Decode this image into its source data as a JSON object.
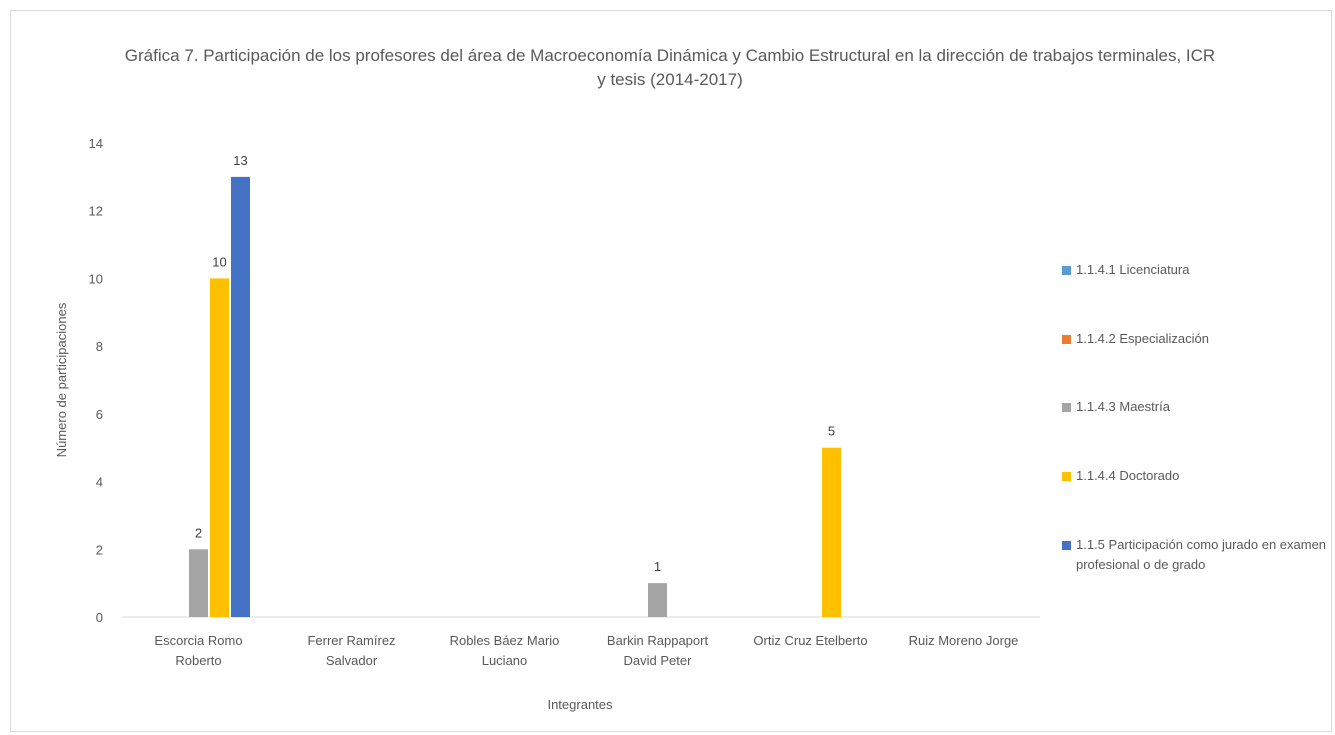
{
  "chart_data": {
    "type": "bar",
    "title": "Gráfica 7. Participación de los  profesores del área de Macroeconomía Dinámica y Cambio Estructural en la dirección de trabajos terminales, ICR y tesis (2014-2017)",
    "xlabel": "Integrantes",
    "ylabel": "Número de participaciones",
    "ylim": [
      0,
      14
    ],
    "yticks": [
      0,
      2,
      4,
      6,
      8,
      10,
      12,
      14
    ],
    "grid": false,
    "legend_position": "right",
    "categories": [
      [
        "Escorcia Romo",
        "Roberto"
      ],
      [
        "Ferrer Ramírez",
        "Salvador"
      ],
      [
        "Robles Báez Mario",
        "Luciano"
      ],
      [
        "Barkin Rappaport",
        "David Peter"
      ],
      [
        "Ortiz Cruz Etelberto"
      ],
      [
        "Ruiz Moreno Jorge"
      ]
    ],
    "series": [
      {
        "name": "1.1.4.1 Licenciatura",
        "color": "#5b9bd5",
        "values": [
          null,
          null,
          null,
          null,
          null,
          null
        ]
      },
      {
        "name": "1.1.4.2 Especialización",
        "color": "#ed7d31",
        "values": [
          null,
          null,
          null,
          null,
          null,
          null
        ]
      },
      {
        "name": "1.1.4.3 Maestría",
        "color": "#a5a5a5",
        "values": [
          2,
          null,
          null,
          1,
          null,
          null
        ]
      },
      {
        "name": "1.1.4.4 Doctorado",
        "color": "#ffc000",
        "values": [
          10,
          null,
          null,
          null,
          5,
          null
        ]
      },
      {
        "name": "1.1.5 Participación como jurado en examen profesional o de grado",
        "color": "#4472c4",
        "values": [
          13,
          null,
          null,
          null,
          null,
          null
        ]
      }
    ]
  }
}
